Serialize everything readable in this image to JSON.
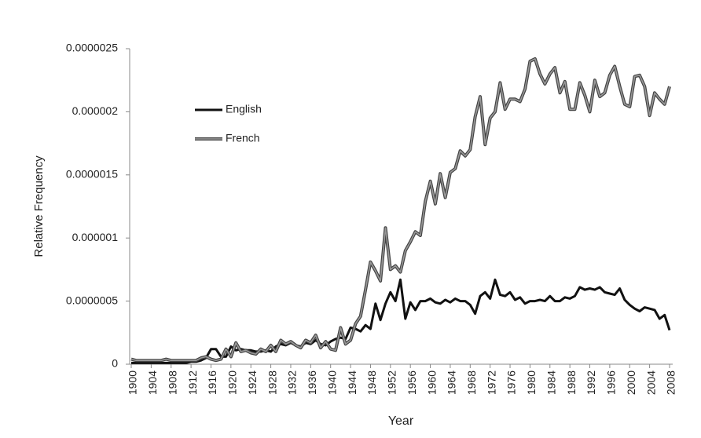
{
  "chart_data": {
    "type": "line",
    "x_label": "Year",
    "y_label": "Relative Frequency",
    "x": [
      1900,
      1901,
      1902,
      1903,
      1904,
      1905,
      1906,
      1907,
      1908,
      1909,
      1910,
      1911,
      1912,
      1913,
      1914,
      1915,
      1916,
      1917,
      1918,
      1919,
      1920,
      1921,
      1922,
      1923,
      1924,
      1925,
      1926,
      1927,
      1928,
      1929,
      1930,
      1931,
      1932,
      1933,
      1934,
      1935,
      1936,
      1937,
      1938,
      1939,
      1940,
      1941,
      1942,
      1943,
      1944,
      1945,
      1946,
      1947,
      1948,
      1949,
      1950,
      1951,
      1952,
      1953,
      1954,
      1955,
      1956,
      1957,
      1958,
      1959,
      1960,
      1961,
      1962,
      1963,
      1964,
      1965,
      1966,
      1967,
      1968,
      1969,
      1970,
      1971,
      1972,
      1973,
      1974,
      1975,
      1976,
      1977,
      1978,
      1979,
      1980,
      1981,
      1982,
      1983,
      1984,
      1985,
      1986,
      1987,
      1988,
      1989,
      1990,
      1991,
      1992,
      1993,
      1994,
      1995,
      1996,
      1997,
      1998,
      1999,
      2000,
      2001,
      2002,
      2003,
      2004,
      2005,
      2006,
      2007,
      2008
    ],
    "xlim": [
      1900,
      2008
    ],
    "xticks": [
      1900,
      1904,
      1908,
      1912,
      1916,
      1920,
      1924,
      1928,
      1932,
      1936,
      1940,
      1944,
      1948,
      1952,
      1956,
      1960,
      1964,
      1968,
      1972,
      1976,
      1980,
      1984,
      1988,
      1992,
      1996,
      2000,
      2004,
      2008
    ],
    "ylim": [
      0,
      2.5e-06
    ],
    "yticks": [
      0,
      {
        "value": 5e-07,
        "label": "0.0000005"
      },
      1e-06,
      1.5e-06,
      2e-06,
      2.5e-06
    ],
    "legend": "upper left",
    "series": [
      {
        "name": "English",
        "color": "#111111",
        "style": "solid",
        "values": [
          1e-08,
          1e-08,
          1e-08,
          1e-08,
          1e-08,
          1e-08,
          1e-08,
          1e-08,
          1e-08,
          1e-08,
          1e-08,
          1e-08,
          2e-08,
          2e-08,
          3e-08,
          5e-08,
          1.2e-07,
          1.2e-07,
          6e-08,
          6e-08,
          1.4e-07,
          1.1e-07,
          1.2e-07,
          1.1e-07,
          1.1e-07,
          1e-07,
          1e-07,
          1.1e-07,
          1e-07,
          1.4e-07,
          1.6e-07,
          1.5e-07,
          1.7e-07,
          1.5e-07,
          1.4e-07,
          1.7e-07,
          1.6e-07,
          1.9e-07,
          1.6e-07,
          1.5e-07,
          1.8e-07,
          2e-07,
          2.1e-07,
          2e-07,
          2.9e-07,
          2.8e-07,
          2.6e-07,
          3.1e-07,
          2.8e-07,
          4.8e-07,
          3.5e-07,
          4.8e-07,
          5.7e-07,
          5e-07,
          6.7e-07,
          3.6e-07,
          4.9e-07,
          4.3e-07,
          5e-07,
          5e-07,
          5.2e-07,
          4.9e-07,
          4.8e-07,
          5.1e-07,
          4.9e-07,
          5.2e-07,
          5e-07,
          5e-07,
          4.7e-07,
          4e-07,
          5.4e-07,
          5.7e-07,
          5.2e-07,
          6.7e-07,
          5.5e-07,
          5.4e-07,
          5.7e-07,
          5.1e-07,
          5.3e-07,
          4.8e-07,
          5e-07,
          5e-07,
          5.1e-07,
          5e-07,
          5.4e-07,
          5e-07,
          5e-07,
          5.3e-07,
          5.2e-07,
          5.4e-07,
          6.1e-07,
          5.9e-07,
          6e-07,
          5.9e-07,
          6.1e-07,
          5.7e-07,
          5.6e-07,
          5.5e-07,
          6e-07,
          5.1e-07,
          4.7e-07,
          4.4e-07,
          4.2e-07,
          4.5e-07,
          4.4e-07,
          4.3e-07,
          3.6e-07,
          3.9e-07,
          2.7e-07
        ]
      },
      {
        "name": "French",
        "color": "#999999",
        "style": "double",
        "values": [
          4e-08,
          3e-08,
          3e-08,
          3e-08,
          3e-08,
          3e-08,
          3e-08,
          4e-08,
          3e-08,
          3e-08,
          3e-08,
          3e-08,
          3e-08,
          3e-08,
          5e-08,
          6e-08,
          4e-08,
          3e-08,
          4e-08,
          1.2e-07,
          6e-08,
          1.7e-07,
          1e-07,
          1.1e-07,
          9e-08,
          8e-08,
          1.2e-07,
          1e-07,
          1.5e-07,
          1e-07,
          1.9e-07,
          1.6e-07,
          1.8e-07,
          1.5e-07,
          1.3e-07,
          1.9e-07,
          1.7e-07,
          2.3e-07,
          1.3e-07,
          1.8e-07,
          1.2e-07,
          1.1e-07,
          2.9e-07,
          1.6e-07,
          1.9e-07,
          3.2e-07,
          3.8e-07,
          5.9e-07,
          8.1e-07,
          7.4e-07,
          6.6e-07,
          1.08e-06,
          7.5e-07,
          7.8e-07,
          7.3e-07,
          9e-07,
          9.7e-07,
          1.05e-06,
          1.02e-06,
          1.29e-06,
          1.45e-06,
          1.27e-06,
          1.51e-06,
          1.32e-06,
          1.52e-06,
          1.55e-06,
          1.69e-06,
          1.65e-06,
          1.7e-06,
          1.96e-06,
          2.12e-06,
          1.74e-06,
          1.95e-06,
          2e-06,
          2.23e-06,
          2.02e-06,
          2.1e-06,
          2.1e-06,
          2.08e-06,
          2.18e-06,
          2.4e-06,
          2.42e-06,
          2.3e-06,
          2.22e-06,
          2.3e-06,
          2.35e-06,
          2.15e-06,
          2.24e-06,
          2.02e-06,
          2.02e-06,
          2.23e-06,
          2.13e-06,
          2e-06,
          2.25e-06,
          2.12e-06,
          2.15e-06,
          2.29e-06,
          2.36e-06,
          2.2e-06,
          2.06e-06,
          2.04e-06,
          2.28e-06,
          2.29e-06,
          2.2e-06,
          1.97e-06,
          2.15e-06,
          2.1e-06,
          2.06e-06,
          2.2e-06
        ]
      }
    ]
  }
}
